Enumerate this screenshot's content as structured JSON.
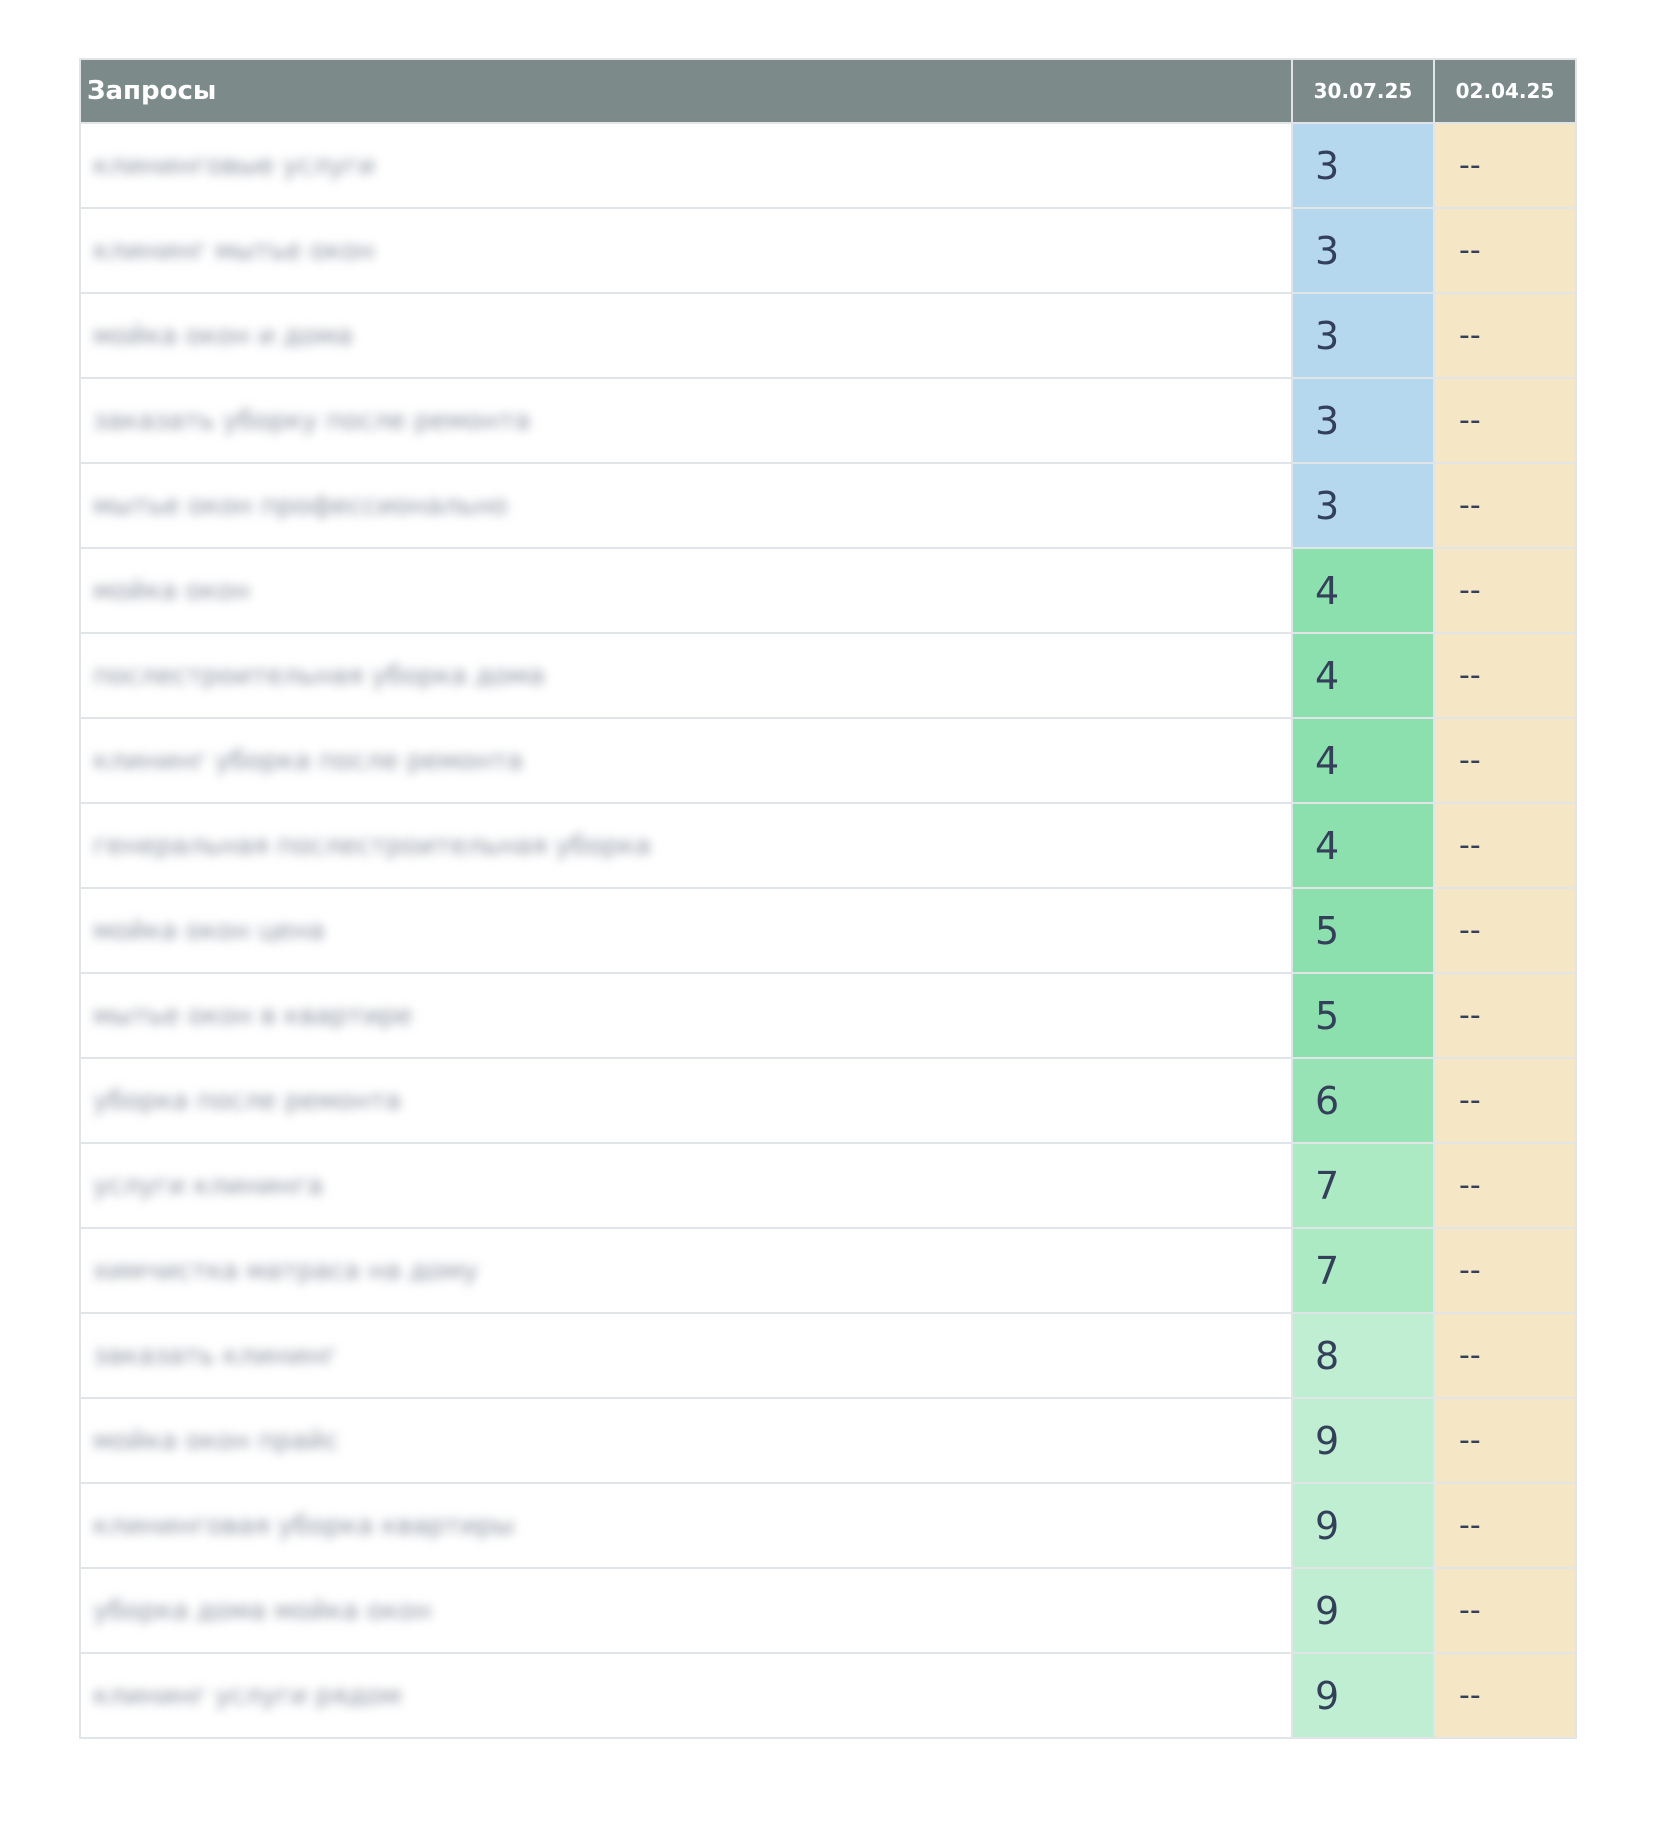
{
  "header": {
    "query_col": "Запросы",
    "dates": [
      "30.07.25",
      "02.04.25"
    ]
  },
  "colors": {
    "header_bg": "#7d8a8a",
    "rank_3": "#b5d8ef",
    "rank_4_5": "#8ce0ae",
    "rank_6": "#97e3b5",
    "rank_7": "#abeac2",
    "rank_8_9": "#bfeed2",
    "no_data": "#f5e6c6"
  },
  "rows": [
    {
      "query": "клининговые услуги",
      "v1": "3",
      "v2": "--"
    },
    {
      "query": "клининг мытье окон",
      "v1": "3",
      "v2": "--"
    },
    {
      "query": "мойка окон и дома",
      "v1": "3",
      "v2": "--"
    },
    {
      "query": "заказать уборку после ремонта",
      "v1": "3",
      "v2": "--"
    },
    {
      "query": "мытье окон профессионально",
      "v1": "3",
      "v2": "--"
    },
    {
      "query": "мойка окон",
      "v1": "4",
      "v2": "--"
    },
    {
      "query": "послестроительная уборка дома",
      "v1": "4",
      "v2": "--"
    },
    {
      "query": "клининг уборка после ремонта",
      "v1": "4",
      "v2": "--"
    },
    {
      "query": "генеральная послестроительная уборка",
      "v1": "4",
      "v2": "--"
    },
    {
      "query": "мойка окон цена",
      "v1": "5",
      "v2": "--"
    },
    {
      "query": "мытье окон в квартире",
      "v1": "5",
      "v2": "--"
    },
    {
      "query": "уборка после ремонта",
      "v1": "6",
      "v2": "--"
    },
    {
      "query": "услуги клининга",
      "v1": "7",
      "v2": "--"
    },
    {
      "query": "химчистка матраса на дому",
      "v1": "7",
      "v2": "--"
    },
    {
      "query": "заказать клининг",
      "v1": "8",
      "v2": "--"
    },
    {
      "query": "мойка окон прайс",
      "v1": "9",
      "v2": "--"
    },
    {
      "query": "клининговая уборка квартиры",
      "v1": "9",
      "v2": "--"
    },
    {
      "query": "уборка дома мойка окон",
      "v1": "9",
      "v2": "--"
    },
    {
      "query": "клининг услуги рядом",
      "v1": "9",
      "v2": "--"
    }
  ]
}
